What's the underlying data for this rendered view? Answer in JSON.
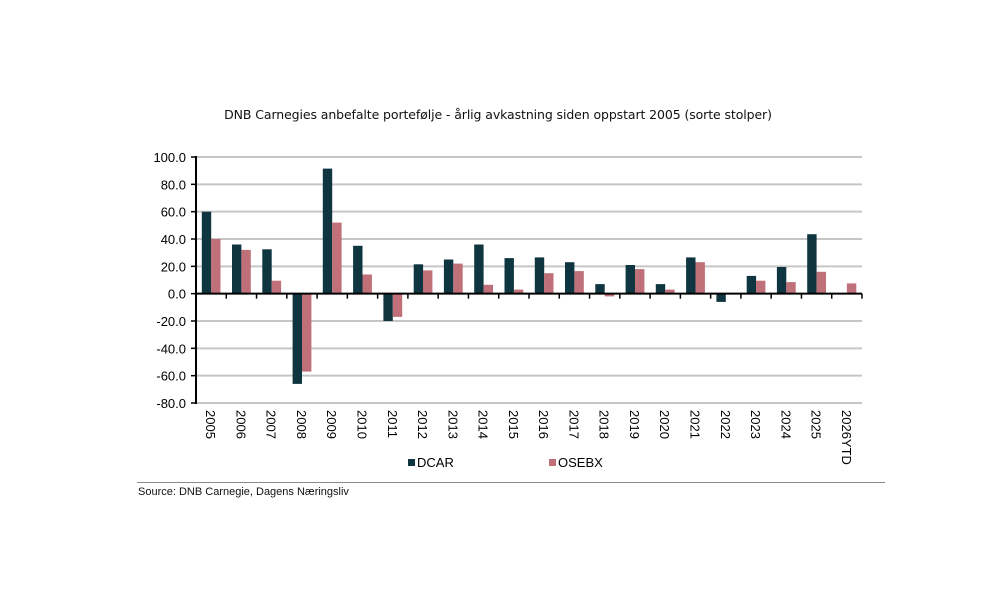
{
  "chart_data": {
    "type": "bar",
    "title": "DNB Carnegies anbefalte portefølje - årlig avkastning siden oppstart 2005 (sorte stolper)",
    "xlabel": "",
    "ylabel": "",
    "ylim": [
      -80,
      100
    ],
    "yticks": [
      100,
      80,
      60,
      40,
      20,
      0,
      -20,
      -40,
      -60,
      -80
    ],
    "ytick_labels": [
      "100.0",
      "80.0",
      "60.0",
      "40.0",
      "20.0",
      "0.0",
      "-20.0",
      "-40.0",
      "-60.0",
      "-80.0"
    ],
    "grid": true,
    "legend_position": "bottom",
    "categories": [
      "2005",
      "2006",
      "2007",
      "2008",
      "2009",
      "2010",
      "2011",
      "2012",
      "2013",
      "2014",
      "2015",
      "2016",
      "2017",
      "2018",
      "2019",
      "2020",
      "2021",
      "2022",
      "2023",
      "2024",
      "2025",
      "2026YTD"
    ],
    "series": [
      {
        "name": "DCAR",
        "color": "#0f3640",
        "values": [
          60,
          36,
          32.5,
          -66,
          91.5,
          35,
          -20,
          21.5,
          25,
          36,
          26,
          26.5,
          23,
          7,
          21,
          7,
          26.5,
          -6,
          13,
          19.5,
          43.5,
          0
        ]
      },
      {
        "name": "OSEBX",
        "color": "#c07078",
        "values": [
          40,
          32,
          9.5,
          -57,
          52,
          14,
          -17,
          17,
          22,
          6.5,
          3,
          15,
          16.5,
          -2,
          18,
          3,
          23,
          -0.5,
          9.5,
          8.5,
          16,
          7.5
        ]
      }
    ]
  },
  "source": "Source: DNB Carnegie, Dagens Næringsliv"
}
